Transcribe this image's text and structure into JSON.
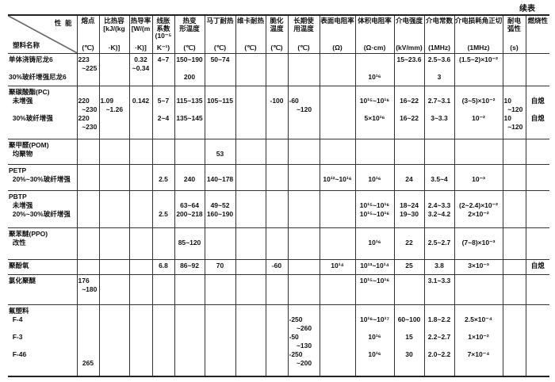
{
  "continued_label": "续表",
  "header": {
    "property_label": "性  能",
    "name_label": "塑料名称",
    "columns": [
      {
        "label": "熔点",
        "unit": "(℃)"
      },
      {
        "label": "比热容\n[kJ/(kg",
        "unit": "·K)]"
      },
      {
        "label": "热导率\n[W/(m",
        "unit": "·K)]"
      },
      {
        "label": "线胀\n系数\n(10⁻⁵",
        "unit": "K⁻¹)"
      },
      {
        "label": "热变\n形温度",
        "unit": "(℃)"
      },
      {
        "label": "马丁耐热",
        "unit": "(℃)"
      },
      {
        "label": "维卡耐热",
        "unit": "(℃)"
      },
      {
        "label": "脆化\n温度",
        "unit": "(℃)"
      },
      {
        "label": "长期使\n用温度",
        "unit": "(℃)"
      },
      {
        "label": "表面电阻率",
        "unit": "(Ω)"
      },
      {
        "label": "体积电阻率",
        "unit": "(Ω·cm)"
      },
      {
        "label": "介电强度",
        "unit": "(kV/mm)"
      },
      {
        "label": "介电常数",
        "unit": "(1MHz)"
      },
      {
        "label": "介电损耗角正切",
        "unit": "(1MHz)"
      },
      {
        "label": "耐电\n弧性",
        "unit": "(s)"
      },
      {
        "label": "燃烧性",
        "unit": ""
      }
    ]
  },
  "rows": [
    {
      "name": "单体浇铸尼龙6\n\n30%玻纤增强尼龙6",
      "cells": [
        "223\n  ~225",
        "",
        "0.32\n~0.34",
        "4~7",
        "150~190\n\n200",
        "50~74",
        "",
        "",
        "",
        "",
        "\n\n10¹⁶",
        "15~23.6",
        "2.5~3.6\n\n3",
        "(1.5~2)×10⁻²",
        "",
        ""
      ]
    },
    {
      "name": "聚碳酸酯(PC)\n  未增强\n\n  30%玻纤增强",
      "cells": [
        "\n220\n  ~230\n220\n  ~230",
        "\n1.09\n   ~1.26",
        "\n0.142",
        "\n5~7\n\n2~4",
        "\n115~135\n\n135~145",
        "\n105~115",
        "",
        "\n-100",
        "\n-60\n    ~120",
        "",
        "\n10¹⁵~10¹⁶\n\n5×10¹⁶",
        "\n16~22\n\n16~22",
        "\n2.7~3.1\n\n3~3.3",
        "\n(3~5)×10⁻²\n\n10⁻²",
        "\n10\n  ~120\n10\n  ~120",
        "\n自熄\n\n自熄"
      ]
    },
    {
      "name": "聚甲醛(POM)\n  均聚物",
      "cells": [
        "",
        "",
        "",
        "",
        "",
        "\n53",
        "",
        "",
        "",
        "",
        "",
        "",
        "",
        "",
        "",
        ""
      ]
    },
    {
      "name": "PETP\n  20%~30%玻纤增强",
      "cells": [
        "",
        "",
        "",
        "\n2.5",
        "\n240",
        "\n140~178",
        "",
        "",
        "",
        "\n10¹²~10¹⁶",
        "\n10¹⁶",
        "\n24",
        "\n3.5~4",
        "\n10⁻³",
        "",
        ""
      ]
    },
    {
      "name": "PBTP\n  未增强\n  20%~30%玻纤增强",
      "cells": [
        "",
        "",
        "",
        "\n\n2.5",
        "\n63~64\n200~218",
        "\n49~52\n160~190",
        "",
        "",
        "",
        "",
        "\n10¹⁵~10¹⁶\n10¹⁵~10¹⁶",
        "\n18~24\n19~30",
        "\n2.4~3.3\n3.2~4.2",
        "\n(2~2.4)×10⁻²\n2×10⁻²",
        "",
        ""
      ]
    },
    {
      "name": "聚苯醚(PPO)\n  改性",
      "cells": [
        "",
        "",
        "",
        "",
        "\n85~120",
        "",
        "",
        "",
        "",
        "",
        "\n10¹⁶",
        "\n22",
        "\n2.5~2.7",
        "\n(7~8)×10⁻³",
        "",
        ""
      ]
    },
    {
      "name": "聚酚氧",
      "cells": [
        "",
        "",
        "",
        "6.8",
        "86~92",
        "70",
        "",
        "-60",
        "",
        "10¹⁴",
        "10¹³~10¹⁴",
        "25",
        "3.8",
        "3×10⁻³",
        "",
        "自熄"
      ]
    },
    {
      "name": "氯化聚醚",
      "cells": [
        "176\n  ~180",
        "",
        "",
        "",
        "",
        "",
        "",
        "",
        "",
        "",
        "10¹⁵~10¹⁶",
        "",
        "3.1~3.3",
        "",
        "",
        ""
      ]
    },
    {
      "name": "氟塑料\n  F-4\n\n  F-3\n\n  F-46",
      "cells": [
        "\n\n\n\n\n\n265",
        "",
        "",
        "",
        "",
        "",
        "",
        "",
        "\n-250\n    ~260\n-50\n    ~130\n-250\n    ~200",
        "",
        "\n10¹⁶~10¹⁷\n\n10¹⁶\n\n10¹⁶",
        "\n60~100\n\n15\n\n30",
        "\n1.8~2.2\n\n2.2~2.7\n\n2.0~2.2",
        "\n2.5×10⁻⁴\n\n1×10⁻²\n\n7×10⁻⁴",
        "",
        ""
      ]
    }
  ]
}
